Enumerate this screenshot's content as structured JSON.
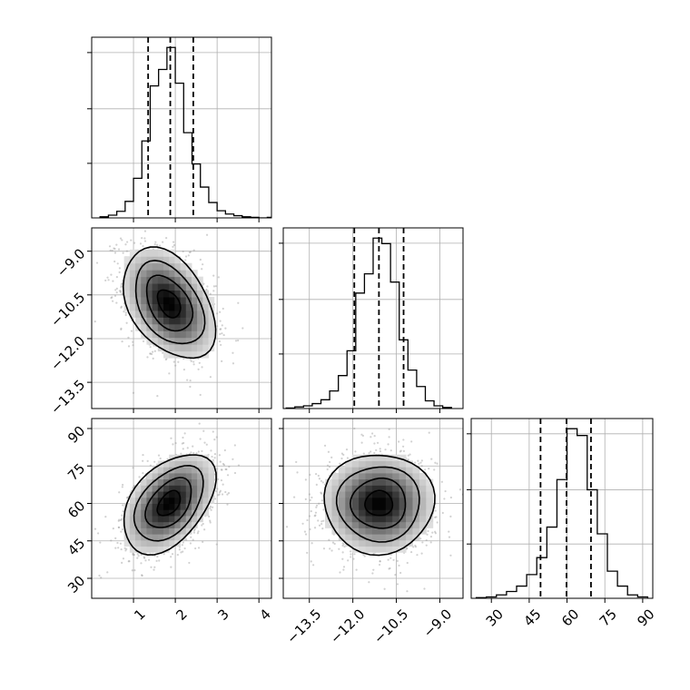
{
  "chart_data": {
    "type": "corner",
    "grid": true,
    "colors": {
      "line": "#000000",
      "grid": "#b0b0b0",
      "scatter": "#9a9a9a"
    },
    "parameters": [
      {
        "range": [
          0.0,
          4.3
        ],
        "ticks": [
          1,
          2,
          3,
          4
        ],
        "tick_labels": [
          "1",
          "2",
          "3",
          "4"
        ]
      },
      {
        "range": [
          -14.4,
          -8.2
        ],
        "ticks": [
          -13.5,
          -12.0,
          -10.5,
          -9.0
        ],
        "tick_labels": [
          "−13.5",
          "−12.0",
          "−10.5",
          "−9.0"
        ]
      },
      {
        "range": [
          22,
          94
        ],
        "ticks": [
          30,
          45,
          60,
          75,
          90
        ],
        "tick_labels": [
          "30",
          "45",
          "60",
          "75",
          "90"
        ]
      }
    ],
    "histograms": [
      {
        "parameter": 0,
        "bin_edges": [
          0.2,
          0.4,
          0.6,
          0.8,
          1.0,
          1.2,
          1.4,
          1.6,
          1.8,
          2.0,
          2.2,
          2.4,
          2.6,
          2.8,
          3.0,
          3.2,
          3.4,
          3.6,
          3.8,
          4.0,
          4.2,
          4.4
        ],
        "counts": [
          2,
          5,
          12,
          30,
          72,
          140,
          240,
          270,
          310,
          245,
          155,
          98,
          56,
          28,
          13,
          7,
          4,
          2,
          1,
          0,
          1
        ],
        "quantiles": [
          1.35,
          1.88,
          2.43
        ]
      },
      {
        "parameter": 1,
        "bin_edges": [
          -14.3,
          -14.0,
          -13.7,
          -13.4,
          -13.1,
          -12.8,
          -12.5,
          -12.2,
          -11.9,
          -11.6,
          -11.3,
          -11.0,
          -10.7,
          -10.4,
          -10.1,
          -9.8,
          -9.5,
          -9.2,
          -8.9,
          -8.6
        ],
        "counts": [
          1,
          3,
          5,
          9,
          16,
          32,
          60,
          105,
          210,
          245,
          310,
          300,
          230,
          125,
          70,
          40,
          14,
          5,
          2
        ],
        "quantiles": [
          -11.95,
          -11.1,
          -10.25
        ]
      },
      {
        "parameter": 2,
        "bin_edges": [
          24,
          28,
          32,
          36,
          40,
          44,
          48,
          52,
          56,
          60,
          64,
          68,
          72,
          76,
          80,
          84,
          88,
          92
        ],
        "counts": [
          1,
          2,
          5,
          10,
          18,
          35,
          60,
          105,
          175,
          250,
          240,
          160,
          95,
          40,
          18,
          5,
          2
        ],
        "quantiles": [
          49.5,
          59.8,
          69.5
        ]
      }
    ],
    "joint_distributions": [
      {
        "x_param": 0,
        "y_param": 1,
        "mean": [
          1.85,
          -10.8
        ],
        "sd": [
          0.55,
          0.95
        ],
        "correlation": -0.4,
        "contour_levels": [
          "0.5σ",
          "1σ",
          "1.5σ",
          "2σ"
        ]
      },
      {
        "x_param": 0,
        "y_param": 2,
        "mean": [
          1.85,
          60
        ],
        "sd": [
          0.55,
          10
        ],
        "correlation": 0.45,
        "contour_levels": [
          "0.5σ",
          "1σ",
          "1.5σ",
          "2σ"
        ]
      },
      {
        "x_param": 1,
        "y_param": 2,
        "mean": [
          -11.1,
          60
        ],
        "sd": [
          0.95,
          10
        ],
        "correlation": 0.0,
        "contour_levels": [
          "0.5σ",
          "1σ",
          "1.5σ",
          "2σ"
        ]
      }
    ]
  }
}
